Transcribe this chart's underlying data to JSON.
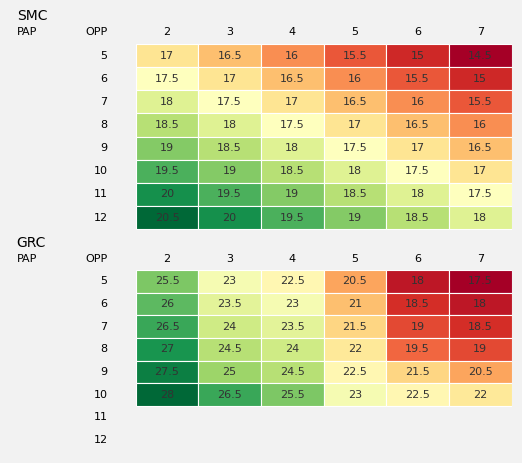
{
  "smc": {
    "title": "SMC",
    "row_label": "PAP",
    "col_label": "OPP",
    "row_values": [
      5,
      6,
      7,
      8,
      9,
      10,
      11,
      12
    ],
    "col_values": [
      2,
      3,
      4,
      5,
      6,
      7
    ],
    "data": [
      [
        17,
        16.5,
        16,
        15.5,
        15,
        14.5
      ],
      [
        17.5,
        17,
        16.5,
        16,
        15.5,
        15
      ],
      [
        18,
        17.5,
        17,
        16.5,
        16,
        15.5
      ],
      [
        18.5,
        18,
        17.5,
        17,
        16.5,
        16
      ],
      [
        19,
        18.5,
        18,
        17.5,
        17,
        16.5
      ],
      [
        19.5,
        19,
        18.5,
        18,
        17.5,
        17
      ],
      [
        20,
        19.5,
        19,
        18.5,
        18,
        17.5
      ],
      [
        20.5,
        20,
        19.5,
        19,
        18.5,
        18
      ]
    ],
    "vmin": 14.5,
    "vmax": 20.5,
    "colormap": "RdYlGn",
    "invert": false
  },
  "grc": {
    "title": "GRC",
    "row_label": "PAP",
    "col_label": "OPP",
    "row_values": [
      5,
      6,
      7,
      8,
      9,
      10,
      11,
      12
    ],
    "col_values": [
      2,
      3,
      4,
      5,
      6,
      7
    ],
    "data": [
      [
        25.5,
        23,
        22.5,
        20.5,
        18,
        17.5
      ],
      [
        26,
        23.5,
        23,
        21,
        18.5,
        18
      ],
      [
        26.5,
        24,
        23.5,
        21.5,
        19,
        18.5
      ],
      [
        27,
        24.5,
        24,
        22,
        19.5,
        19
      ],
      [
        27.5,
        25,
        24.5,
        22.5,
        21.5,
        20.5
      ],
      [
        28,
        26.5,
        25.5,
        23,
        22.5,
        22
      ],
      [
        null,
        null,
        null,
        null,
        null,
        null
      ],
      [
        null,
        null,
        null,
        null,
        null,
        null
      ]
    ],
    "vmin": 17.5,
    "vmax": 28,
    "colormap": "RdYlGn",
    "invert": false
  },
  "bg_color": "#f2f2f2",
  "font_size": 8,
  "title_font_size": 10,
  "header_font_size": 8
}
